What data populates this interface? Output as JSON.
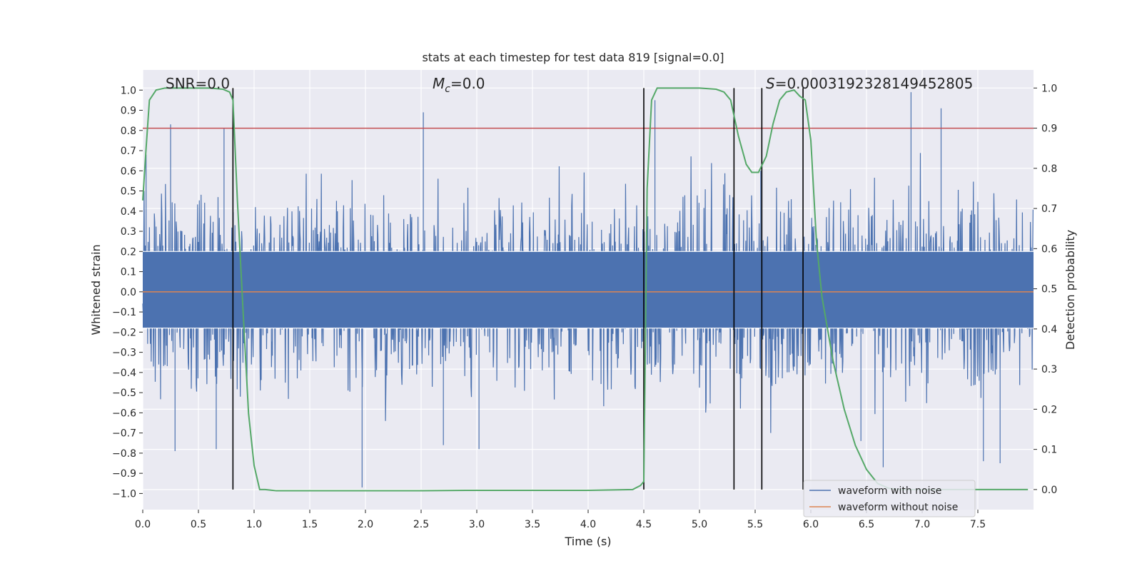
{
  "chart_data": {
    "type": "line",
    "title": "stats at each timestep for test data 819 [signal=0.0]",
    "xlabel": "Time (s)",
    "ylabel_left": "Whitened strain",
    "ylabel_right": "Detection probability",
    "xlim": [
      0.0,
      8.0
    ],
    "ylim_left": [
      -1.08,
      1.1
    ],
    "ylim_right": [
      -0.05,
      1.045
    ],
    "x_ticks": [
      0.0,
      0.5,
      1.0,
      1.5,
      2.0,
      2.5,
      3.0,
      3.5,
      4.0,
      4.5,
      5.0,
      5.5,
      6.0,
      6.5,
      7.0,
      7.5
    ],
    "x_tick_labels": [
      "0.0",
      "0.5",
      "1.0",
      "1.5",
      "2.0",
      "2.5",
      "3.0",
      "3.5",
      "4.0",
      "4.5",
      "5.0",
      "5.5",
      "6.0",
      "6.5",
      "7.0",
      "7.5"
    ],
    "y_left_ticks": [
      -1.0,
      -0.9,
      -0.8,
      -0.7,
      -0.6,
      -0.5,
      -0.4,
      -0.3,
      -0.2,
      -0.1,
      0.0,
      0.1,
      0.2,
      0.3,
      0.4,
      0.5,
      0.6,
      0.7,
      0.8,
      0.9,
      1.0
    ],
    "y_left_tick_labels": [
      "−1.0",
      "−0.9",
      "−0.8",
      "−0.7",
      "−0.6",
      "−0.5",
      "−0.4",
      "−0.3",
      "−0.2",
      "−0.1",
      "0.0",
      "0.1",
      "0.2",
      "0.3",
      "0.4",
      "0.5",
      "0.6",
      "0.7",
      "0.8",
      "0.9",
      "1.0"
    ],
    "y_right_ticks": [
      0.0,
      0.1,
      0.2,
      0.3,
      0.4,
      0.5,
      0.6,
      0.7,
      0.8,
      0.9,
      1.0
    ],
    "y_right_tick_labels": [
      "0.0",
      "0.1",
      "0.2",
      "0.3",
      "0.4",
      "0.5",
      "0.6",
      "0.7",
      "0.8",
      "0.9",
      "1.0"
    ],
    "annotations": {
      "snr": "SNR=0.0",
      "mc_symbol": "M",
      "mc_sub": "c",
      "mc_value": "=0.0",
      "s_symbol": "S",
      "s_value": "=0.0003192328149452805"
    },
    "threshold": {
      "value_right_axis": 0.9,
      "color": "#c44e52"
    },
    "vertical_markers_x": [
      0.81,
      4.5,
      5.31,
      5.56,
      5.93
    ],
    "noisy_waveform": {
      "name": "waveform with noise",
      "color": "#4c72b0",
      "samples": 2000,
      "typical_amplitude": 0.42,
      "peaks": [
        {
          "x": 0.03,
          "y": 0.68
        },
        {
          "x": 0.25,
          "y": 0.83
        },
        {
          "x": 0.29,
          "y": -0.79
        },
        {
          "x": 0.66,
          "y": -0.78
        },
        {
          "x": 0.73,
          "y": 0.81
        },
        {
          "x": 1.97,
          "y": -0.97
        },
        {
          "x": 2.52,
          "y": 0.89
        },
        {
          "x": 2.7,
          "y": -0.76
        },
        {
          "x": 3.02,
          "y": -0.78
        },
        {
          "x": 4.6,
          "y": 0.95
        },
        {
          "x": 5.55,
          "y": 0.6
        },
        {
          "x": 6.45,
          "y": -0.74
        },
        {
          "x": 6.65,
          "y": -0.87
        },
        {
          "x": 6.9,
          "y": 0.99
        },
        {
          "x": 7.17,
          "y": 0.91
        },
        {
          "x": 7.55,
          "y": -0.84
        },
        {
          "x": 7.7,
          "y": -0.85
        }
      ]
    },
    "clean_waveform": {
      "name": "waveform without noise",
      "color": "#dd8452",
      "value": 0.0
    },
    "detection_probability": {
      "name": "detection probability",
      "color": "#55a868",
      "x": [
        0.0,
        0.03,
        0.06,
        0.12,
        0.2,
        0.4,
        0.6,
        0.72,
        0.78,
        0.81,
        0.85,
        0.9,
        0.95,
        1.0,
        1.05,
        1.1,
        1.2,
        1.5,
        2.0,
        2.5,
        2.9,
        3.5,
        4.0,
        4.4,
        4.47,
        4.5,
        4.53,
        4.57,
        4.62,
        4.7,
        5.0,
        5.15,
        5.22,
        5.28,
        5.35,
        5.42,
        5.47,
        5.53,
        5.6,
        5.66,
        5.72,
        5.78,
        5.85,
        5.9,
        5.95,
        6.0,
        6.05,
        6.1,
        6.2,
        6.3,
        6.4,
        6.5,
        6.6,
        6.7,
        6.8,
        7.0,
        7.5,
        7.95
      ],
      "y": [
        0.72,
        0.85,
        0.97,
        0.995,
        1.0,
        1.0,
        1.0,
        0.997,
        0.99,
        0.97,
        0.72,
        0.45,
        0.19,
        0.06,
        0.0,
        0.0,
        -0.003,
        -0.003,
        -0.003,
        -0.003,
        -0.002,
        -0.002,
        -0.002,
        0.0,
        0.01,
        0.02,
        0.75,
        0.97,
        1.0,
        1.0,
        1.0,
        0.997,
        0.99,
        0.97,
        0.88,
        0.81,
        0.79,
        0.79,
        0.83,
        0.91,
        0.97,
        0.99,
        0.995,
        0.98,
        0.97,
        0.87,
        0.62,
        0.48,
        0.32,
        0.2,
        0.11,
        0.05,
        0.015,
        0.003,
        0.0,
        0.0,
        0.0,
        0.0
      ]
    },
    "legend": {
      "location": "lower right",
      "entries": [
        "waveform with noise",
        "waveform without noise"
      ]
    }
  }
}
